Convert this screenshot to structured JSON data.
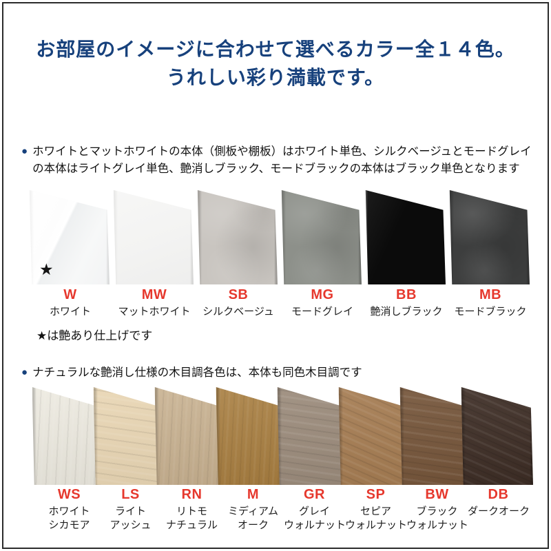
{
  "page": {
    "frame_border_color": "#2a2a2a",
    "background": "#ffffff",
    "title_color": "#17417c",
    "code_color": "#e6382d",
    "bullet_color": "#17417c"
  },
  "title": {
    "line1": "お部屋のイメージに合わせて選べるカラー全１４色。",
    "line2": "うれしい彩り満載です。"
  },
  "sections": [
    {
      "id": "solid-colors",
      "bullet": "●",
      "description": "ホワイトとマットホワイトの本体（側板や棚板）はホワイト単色、シルクベージュとモードグレイの本体はライトグレイ単色、艶消しブラック、モードブラックの本体はブラック単色となります",
      "note": "★は艶あり仕上げです",
      "swatches": [
        {
          "code": "W",
          "name_lines": [
            "ホワイト"
          ],
          "color": "#f6f7f7",
          "finish": "gloss",
          "marker": "★"
        },
        {
          "code": "MW",
          "name_lines": [
            "マットホワイト"
          ],
          "color": "#f3f3f2",
          "finish": "matte"
        },
        {
          "code": "SB",
          "name_lines": [
            "シルクベージュ"
          ],
          "color": "#c9c5c0",
          "finish": "stone"
        },
        {
          "code": "MG",
          "name_lines": [
            "モードグレイ"
          ],
          "color": "#8d908a",
          "finish": "stone"
        },
        {
          "code": "BB",
          "name_lines": [
            "艶消しブラック"
          ],
          "color": "#0b0b0b",
          "finish": "solid"
        },
        {
          "code": "MB",
          "name_lines": [
            "モードブラック"
          ],
          "color": "#3d3e3e",
          "finish": "stone"
        }
      ]
    },
    {
      "id": "woodgrain-colors",
      "bullet": "●",
      "description": "ナチュラルな艶消し仕様の木目調各色は、本体も同色木目調です",
      "note": "",
      "swatches": [
        {
          "code": "WS",
          "name_lines": [
            "ホワイト",
            "シカモア"
          ],
          "color": "#edeae0",
          "finish": "wood-v"
        },
        {
          "code": "LS",
          "name_lines": [
            "ライト",
            "アッシュ"
          ],
          "color": "#e9d6b4",
          "finish": "wood-h"
        },
        {
          "code": "RN",
          "name_lines": [
            "リトモ",
            "ナチュラル"
          ],
          "color": "#c8b190",
          "finish": "wood-v"
        },
        {
          "code": "M",
          "name_lines": [
            "ミディアム",
            "オーク"
          ],
          "color": "#a87e40",
          "finish": "wood-v"
        },
        {
          "code": "GR",
          "name_lines": [
            "グレイ",
            "ウォルナット"
          ],
          "color": "#9b8b7b",
          "finish": "wood-h"
        },
        {
          "code": "SP",
          "name_lines": [
            "セピア",
            "ウォルナット"
          ],
          "color": "#a57c52",
          "finish": "wood-d"
        },
        {
          "code": "BW",
          "name_lines": [
            "ブラック",
            "ウォルナット"
          ],
          "color": "#75553a",
          "finish": "wood-h"
        },
        {
          "code": "DB",
          "name_lines": [
            "ダークオーク"
          ],
          "color": "#3d2d25",
          "finish": "wood-d"
        }
      ]
    }
  ],
  "layout_note_visible_star_on": "W"
}
